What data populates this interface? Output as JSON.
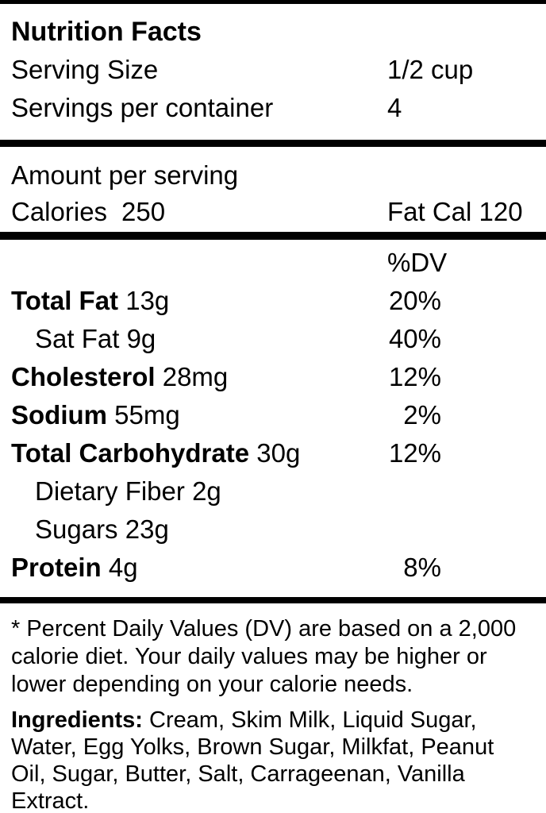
{
  "label": {
    "title": "Nutrition Facts",
    "serving": {
      "size_label": "Serving Size",
      "size_value": "1/2 cup",
      "per_container_label": "Servings per container",
      "per_container_value": "4"
    },
    "calories": {
      "header": "Amount per serving",
      "label": "Calories",
      "value": "250",
      "fat_cal_label": "Fat Cal",
      "fat_cal_value": "120"
    },
    "dv_header": "%DV",
    "nutrients": [
      {
        "name": "Total Fat",
        "amount": "13g",
        "dv": "20%"
      },
      {
        "name": "Sat Fat",
        "amount": "9g",
        "dv": "40%"
      },
      {
        "name": "Cholesterol",
        "amount": "28mg",
        "dv": "12%"
      },
      {
        "name": "Sodium",
        "amount": "55mg",
        "dv": "2%"
      },
      {
        "name": "Total Carbohydrate",
        "amount": "30g",
        "dv": "12%"
      },
      {
        "name": "Dietary Fiber",
        "amount": "2g",
        "dv": ""
      },
      {
        "name": "Sugars",
        "amount": "23g",
        "dv": ""
      },
      {
        "name": "Protein",
        "amount": "4g",
        "dv": "8%"
      }
    ],
    "footnote_lines": [
      "* Percent Daily Values (DV) are based on a 2,000",
      "calorie diet. Your daily values may be higher or",
      "lower depending on your calorie needs."
    ],
    "ingredients": {
      "label": "Ingredients:",
      "lines": [
        "Cream, Skim Milk, Liquid Sugar,",
        "Water, Egg Yolks, Brown Sugar, Milkfat, Peanut",
        "Oil, Sugar, Butter, Salt, Carrageenan, Vanilla",
        "Extract."
      ]
    },
    "colors": {
      "text": "#000000",
      "background": "#ffffff",
      "rule": "#000000"
    }
  }
}
